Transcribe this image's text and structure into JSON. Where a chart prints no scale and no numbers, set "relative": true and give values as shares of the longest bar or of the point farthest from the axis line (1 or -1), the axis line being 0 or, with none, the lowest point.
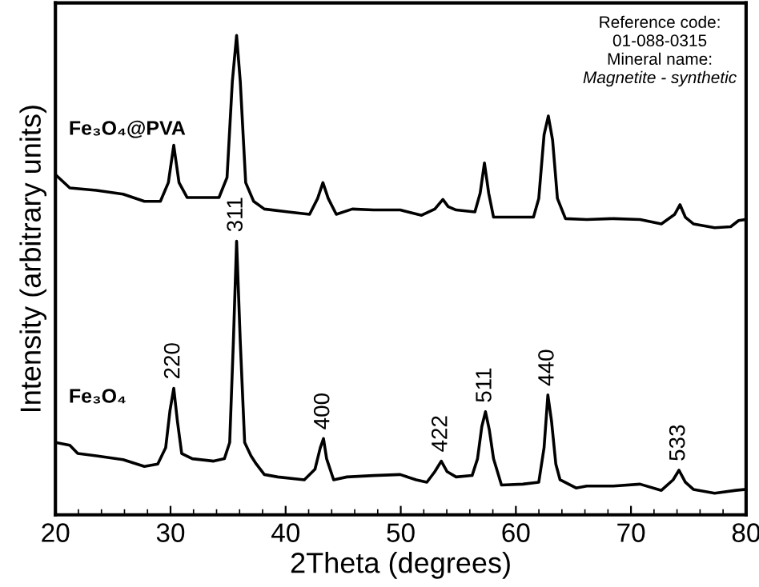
{
  "chart_data": {
    "type": "line",
    "relative": true,
    "xlabel": "2Theta (degrees)",
    "ylabel": "Intensity (arbitrary units)",
    "xlim": [
      20,
      80
    ],
    "xticks": [
      20,
      30,
      40,
      50,
      60,
      70,
      80
    ],
    "grid": false,
    "legend": false,
    "marker": "none",
    "line_style": "solid",
    "tick_labels": "x",
    "series": [
      {
        "name": "Fe₃O₄@PVA",
        "color": "#000000",
        "x": [
          20.0,
          21.25,
          23.56,
          25.88,
          27.73,
          29.12,
          29.81,
          30.28,
          30.74,
          31.44,
          34.21,
          34.91,
          35.37,
          35.74,
          36.06,
          36.53,
          37.22,
          38.15,
          40.23,
          42.08,
          42.78,
          43.24,
          43.7,
          44.4,
          45.79,
          47.64,
          49.95,
          51.81,
          52.96,
          53.66,
          54.12,
          54.81,
          56.44,
          56.9,
          57.27,
          57.64,
          58.06,
          59.68,
          61.53,
          61.99,
          62.45,
          62.82,
          63.19,
          63.61,
          64.31,
          66.16,
          68.47,
          70.79,
          72.64,
          73.8,
          74.26,
          74.72,
          75.42,
          77.27,
          78.66,
          79.35,
          79.95
        ],
        "values": [
          0.71,
          0.682,
          0.677,
          0.669,
          0.654,
          0.654,
          0.693,
          0.771,
          0.693,
          0.662,
          0.662,
          0.704,
          0.904,
          1.0,
          0.904,
          0.693,
          0.654,
          0.638,
          0.632,
          0.627,
          0.66,
          0.693,
          0.66,
          0.627,
          0.638,
          0.636,
          0.636,
          0.625,
          0.638,
          0.658,
          0.643,
          0.636,
          0.632,
          0.671,
          0.734,
          0.671,
          0.621,
          0.621,
          0.621,
          0.66,
          0.793,
          0.832,
          0.782,
          0.66,
          0.618,
          0.616,
          0.618,
          0.616,
          0.607,
          0.627,
          0.647,
          0.621,
          0.607,
          0.599,
          0.601,
          0.614,
          0.616
        ]
      },
      {
        "name": "Fe₃O₄",
        "color": "#000000",
        "x": [
          20.0,
          21.25,
          21.94,
          23.56,
          25.88,
          27.73,
          28.89,
          29.58,
          29.95,
          30.28,
          30.6,
          30.97,
          31.9,
          33.75,
          34.68,
          35.14,
          35.46,
          35.74,
          36.06,
          36.44,
          36.99,
          37.45,
          38.15,
          39.31,
          41.62,
          42.55,
          43.01,
          43.29,
          43.56,
          44.17,
          45.32,
          47.64,
          49.95,
          51.34,
          52.27,
          52.96,
          53.52,
          54.03,
          54.81,
          56.2,
          56.67,
          57.04,
          57.36,
          57.69,
          58.06,
          58.75,
          60.6,
          61.99,
          62.45,
          62.78,
          63.1,
          63.47,
          63.84,
          65.23,
          66.16,
          68.47,
          70.79,
          72.64,
          73.66,
          74.17,
          74.72,
          75.42,
          77.27,
          79.12,
          79.95
        ],
        "values": [
          0.151,
          0.145,
          0.128,
          0.123,
          0.115,
          0.101,
          0.106,
          0.14,
          0.217,
          0.264,
          0.195,
          0.128,
          0.117,
          0.112,
          0.117,
          0.151,
          0.361,
          0.571,
          0.361,
          0.151,
          0.123,
          0.106,
          0.084,
          0.079,
          0.073,
          0.095,
          0.14,
          0.159,
          0.117,
          0.073,
          0.079,
          0.082,
          0.084,
          0.073,
          0.068,
          0.09,
          0.112,
          0.09,
          0.079,
          0.082,
          0.117,
          0.184,
          0.215,
          0.178,
          0.117,
          0.062,
          0.064,
          0.068,
          0.14,
          0.25,
          0.195,
          0.106,
          0.073,
          0.056,
          0.06,
          0.06,
          0.064,
          0.051,
          0.073,
          0.093,
          0.068,
          0.053,
          0.045,
          0.051,
          0.053
        ]
      }
    ],
    "annotations": [
      {
        "text": "220",
        "x": 30.28,
        "y": 0.264
      },
      {
        "text": "311",
        "x": 35.74,
        "y": 0.571
      },
      {
        "text": "400",
        "x": 43.29,
        "y": 0.159
      },
      {
        "text": "422",
        "x": 53.52,
        "y": 0.112
      },
      {
        "text": "511",
        "x": 57.36,
        "y": 0.215
      },
      {
        "text": "440",
        "x": 62.78,
        "y": 0.25
      },
      {
        "text": "533",
        "x": 74.17,
        "y": 0.093
      },
      "Reference code:",
      "01-088-0315",
      "Mineral name:",
      "Magnetite - synthetic"
    ]
  }
}
